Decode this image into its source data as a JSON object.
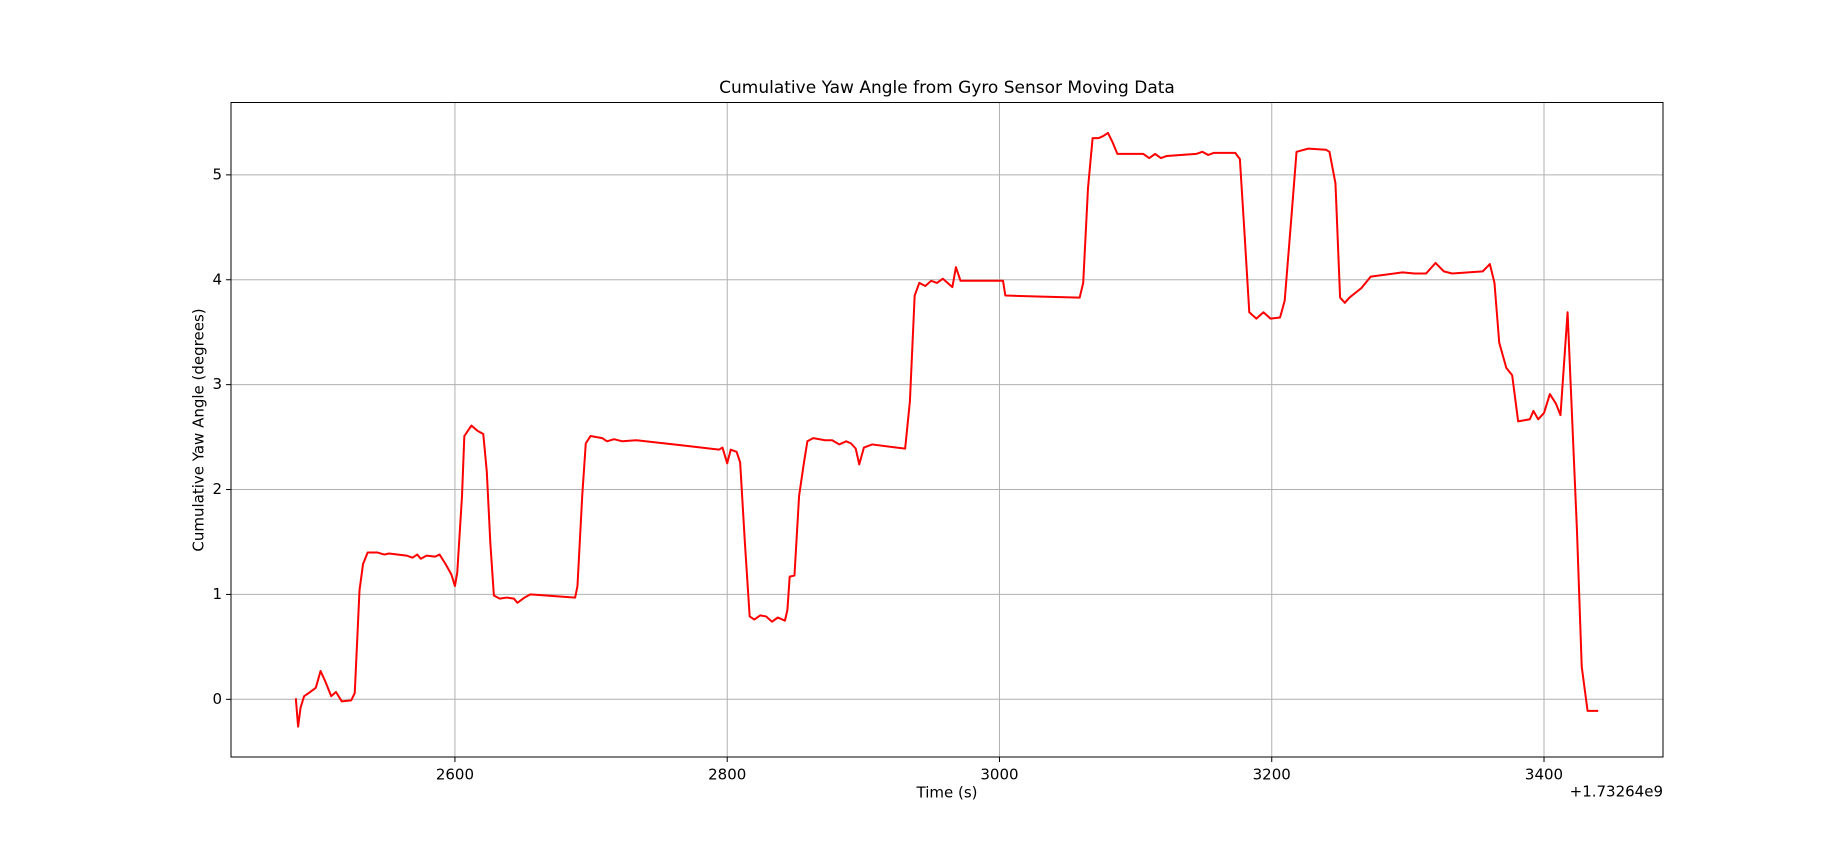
{
  "chart_data": {
    "type": "line",
    "title": "Cumulative Yaw Angle from Gyro Sensor Moving Data",
    "x_label": "Time (s)",
    "y_label": "Cumulative Yaw Angle (degrees)",
    "x_offset_label": "+1.73264e9",
    "color": "#ff0000",
    "grid": true,
    "xlim": [
      2435.5,
      3487.4
    ],
    "ylim": [
      -0.55,
      5.69
    ],
    "xticks": [
      2600,
      2800,
      3000,
      3200,
      3400
    ],
    "yticks": [
      0,
      1,
      2,
      3,
      4,
      5
    ],
    "x": [
      2483.1,
      2484.8,
      2486.6,
      2489.2,
      2492.6,
      2497.8,
      2501.3,
      2504.8,
      2509.1,
      2512.6,
      2516.9,
      2523.8,
      2526.4,
      2529.9,
      2532.5,
      2535.9,
      2542.9,
      2548.1,
      2551.5,
      2564.5,
      2568.8,
      2572.3,
      2574.9,
      2579.2,
      2585.3,
      2588.7,
      2593.1,
      2597.4,
      2600,
      2601.7,
      2605.2,
      2606.9,
      2612.1,
      2616.5,
      2620.8,
      2623.4,
      2626,
      2628.6,
      2632.9,
      2638.1,
      2643.3,
      2645.9,
      2651.1,
      2655.4,
      2688.3,
      2690,
      2693.5,
      2696.1,
      2699.6,
      2708.2,
      2711.7,
      2716.9,
      2723,
      2733.3,
      2767.9,
      2793.9,
      2796.5,
      2800,
      2802.6,
      2806.9,
      2809.5,
      2813,
      2816.5,
      2819.9,
      2824.2,
      2828.6,
      2832.9,
      2837.2,
      2842.4,
      2844.2,
      2845.9,
      2849.4,
      2852.8,
      2856.3,
      2858.9,
      2863.2,
      2871.9,
      2877.1,
      2882.3,
      2887.4,
      2890.9,
      2894.4,
      2897,
      2900.4,
      2906.5,
      2930.7,
      2934.2,
      2937.7,
      2941.1,
      2945.5,
      2949.8,
      2954.1,
      2958.4,
      2962.8,
      2965.4,
      2968,
      2971.4,
      3002.6,
      3004.3,
      3027.7,
      3058.9,
      3061.5,
      3065,
      3068.4,
      3072.7,
      3076.2,
      3079.7,
      3083.1,
      3086.6,
      3105.6,
      3110,
      3114.3,
      3118.6,
      3123,
      3144.6,
      3149,
      3153.3,
      3157.6,
      3173.2,
      3176.6,
      3180.1,
      3183.5,
      3188.7,
      3193.9,
      3199.1,
      3206.1,
      3209.5,
      3214.7,
      3218.2,
      3226.8,
      3239.8,
      3242.4,
      3246.8,
      3250.2,
      3253.7,
      3257.1,
      3265.8,
      3272.7,
      3296.1,
      3304.8,
      3313.4,
      3320.3,
      3326.4,
      3332.5,
      3355,
      3360.2,
      3363.6,
      3367.1,
      3372.3,
      3376.6,
      3381,
      3389.6,
      3392.2,
      3395.7,
      3400,
      3404.3,
      3408.7,
      3412.1,
      3417.3,
      3424.2,
      3427.7,
      3432,
      3439.8
    ],
    "values": [
      0.01,
      -0.26,
      -0.08,
      0.03,
      0.06,
      0.11,
      0.27,
      0.17,
      0.03,
      0.07,
      -0.02,
      -0.01,
      0.06,
      1.04,
      1.29,
      1.4,
      1.4,
      1.38,
      1.39,
      1.37,
      1.35,
      1.38,
      1.34,
      1.37,
      1.36,
      1.38,
      1.29,
      1.19,
      1.08,
      1.21,
      1.94,
      2.51,
      2.61,
      2.56,
      2.53,
      2.17,
      1.49,
      0.99,
      0.96,
      0.97,
      0.96,
      0.92,
      0.97,
      1.0,
      0.97,
      1.08,
      1.94,
      2.44,
      2.51,
      2.49,
      2.46,
      2.48,
      2.46,
      2.47,
      2.42,
      2.38,
      2.4,
      2.25,
      2.38,
      2.36,
      2.26,
      1.49,
      0.79,
      0.76,
      0.8,
      0.79,
      0.74,
      0.78,
      0.75,
      0.85,
      1.17,
      1.18,
      1.94,
      2.25,
      2.46,
      2.49,
      2.47,
      2.47,
      2.43,
      2.46,
      2.44,
      2.39,
      2.24,
      2.4,
      2.43,
      2.39,
      2.84,
      3.85,
      3.97,
      3.94,
      3.99,
      3.97,
      4.01,
      3.96,
      3.93,
      4.12,
      3.99,
      3.99,
      3.85,
      3.84,
      3.83,
      3.97,
      4.87,
      5.35,
      5.35,
      5.37,
      5.4,
      5.31,
      5.2,
      5.2,
      5.16,
      5.2,
      5.16,
      5.18,
      5.2,
      5.22,
      5.19,
      5.21,
      5.21,
      5.15,
      4.42,
      3.69,
      3.63,
      3.69,
      3.63,
      3.64,
      3.8,
      4.64,
      5.22,
      5.25,
      5.24,
      5.22,
      4.92,
      3.83,
      3.78,
      3.83,
      3.92,
      4.03,
      4.07,
      4.06,
      4.06,
      4.16,
      4.08,
      4.06,
      4.08,
      4.15,
      3.97,
      3.4,
      3.16,
      3.09,
      2.65,
      2.67,
      2.75,
      2.67,
      2.73,
      2.91,
      2.82,
      2.71,
      3.69,
      1.61,
      0.31,
      -0.11,
      -0.11
    ]
  }
}
